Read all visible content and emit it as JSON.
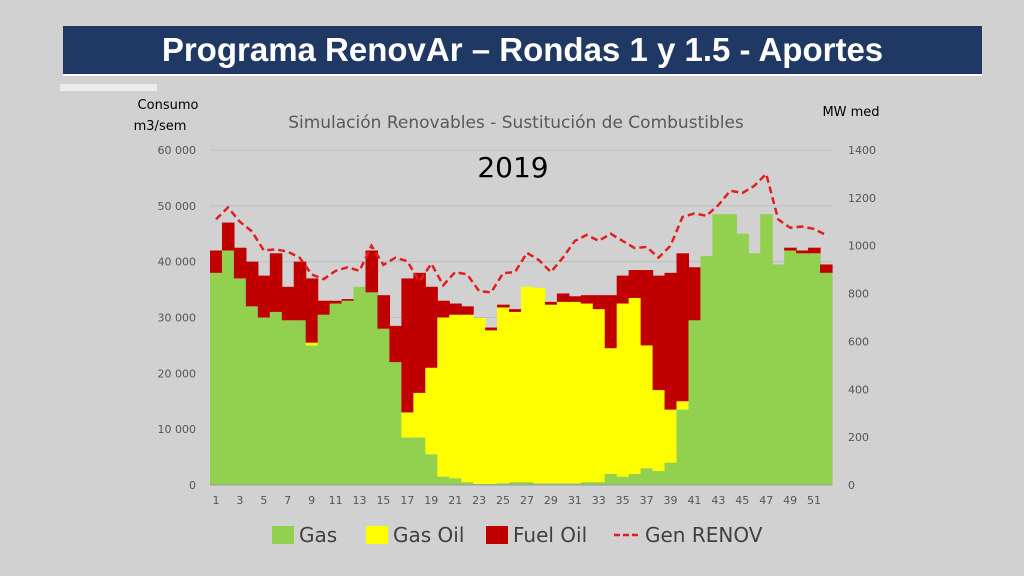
{
  "page": {
    "title": "Programa RenovAr – Rondas 1 y 1.5 - Aportes"
  },
  "chart_data": {
    "type": "bar",
    "stacked": true,
    "title": "Simulación Renovables - Sustitución de Combustibles",
    "subtitle": "2019",
    "ylabel": [
      "Consumo",
      "m3/sem"
    ],
    "y2label": "MW med",
    "ylim": [
      0,
      60000
    ],
    "y2lim": [
      0,
      1400
    ],
    "yticks": [
      0,
      10000,
      20000,
      30000,
      40000,
      50000,
      60000
    ],
    "ytick_labels": [
      "0",
      "10 000",
      "20 000",
      "30 000",
      "40 000",
      "50 000",
      "60 000"
    ],
    "y2ticks": [
      0,
      200,
      400,
      600,
      800,
      1000,
      1200,
      1400
    ],
    "y2tick_labels": [
      "0",
      "200",
      "400",
      "600",
      "800",
      "1000",
      "1200",
      "1400"
    ],
    "categories": [
      1,
      2,
      3,
      4,
      5,
      6,
      7,
      8,
      9,
      10,
      11,
      12,
      13,
      14,
      15,
      16,
      17,
      18,
      19,
      20,
      21,
      22,
      23,
      24,
      25,
      26,
      27,
      28,
      29,
      30,
      31,
      32,
      33,
      34,
      35,
      36,
      37,
      38,
      39,
      40,
      41,
      42,
      43,
      44,
      45,
      46,
      47,
      48,
      49,
      50,
      51,
      52
    ],
    "xtick_labels": [
      "1",
      "3",
      "5",
      "7",
      "9",
      "11",
      "13",
      "15",
      "17",
      "19",
      "21",
      "23",
      "25",
      "27",
      "29",
      "31",
      "33",
      "35",
      "37",
      "39",
      "41",
      "43",
      "45",
      "47",
      "49",
      "51"
    ],
    "grid": true,
    "legend_position": "bottom",
    "series": [
      {
        "name": "Gas",
        "kind": "bar",
        "color": "#92d050",
        "values": [
          38000,
          42000,
          37000,
          32000,
          30000,
          31000,
          29500,
          29500,
          25000,
          30500,
          32500,
          33000,
          35500,
          34500,
          28000,
          22000,
          8500,
          8500,
          5500,
          1500,
          1200,
          500,
          200,
          200,
          300,
          500,
          500,
          300,
          300,
          300,
          300,
          500,
          500,
          2000,
          1500,
          2000,
          3000,
          2500,
          4000,
          13500,
          29500,
          41000,
          48500,
          48500,
          45000,
          41500,
          48500,
          39500,
          42000,
          41500,
          41500,
          38000
        ]
      },
      {
        "name": "Gas Oil",
        "kind": "bar",
        "color": "#ffff00",
        "values": [
          0,
          0,
          0,
          0,
          0,
          0,
          0,
          0,
          500,
          0,
          0,
          0,
          0,
          0,
          0,
          0,
          4500,
          8000,
          15500,
          28500,
          29300,
          30000,
          29700,
          27500,
          31500,
          30500,
          35000,
          35000,
          32000,
          32500,
          32500,
          32000,
          31000,
          22500,
          31000,
          31500,
          22000,
          14500,
          9500,
          1500,
          0,
          0,
          0,
          0,
          0,
          0,
          0,
          0,
          0,
          0,
          0,
          0
        ]
      },
      {
        "name": "Fuel Oil",
        "kind": "bar",
        "color": "#c00000",
        "values": [
          4000,
          5000,
          5500,
          8000,
          7500,
          10500,
          6000,
          10500,
          11500,
          2500,
          500,
          300,
          0,
          7500,
          6000,
          6500,
          24000,
          21500,
          14500,
          3000,
          2000,
          1500,
          0,
          500,
          500,
          500,
          0,
          0,
          500,
          1500,
          1000,
          1500,
          2500,
          9500,
          5000,
          5000,
          13500,
          20500,
          24500,
          26500,
          9500,
          0,
          0,
          0,
          0,
          0,
          0,
          0,
          500,
          500,
          1000,
          1500
        ]
      },
      {
        "name": "Gen RENOV",
        "kind": "line",
        "axis": "right",
        "color": "#e02020",
        "dash": true,
        "values": [
          1110,
          1160,
          1100,
          1060,
          980,
          985,
          975,
          950,
          880,
          860,
          895,
          910,
          895,
          1000,
          920,
          950,
          935,
          850,
          925,
          835,
          890,
          880,
          810,
          805,
          885,
          890,
          970,
          940,
          890,
          950,
          1020,
          1045,
          1020,
          1050,
          1020,
          990,
          995,
          950,
          1000,
          1120,
          1135,
          1125,
          1170,
          1230,
          1220,
          1250,
          1300,
          1110,
          1075,
          1080,
          1070,
          1045
        ]
      }
    ]
  }
}
